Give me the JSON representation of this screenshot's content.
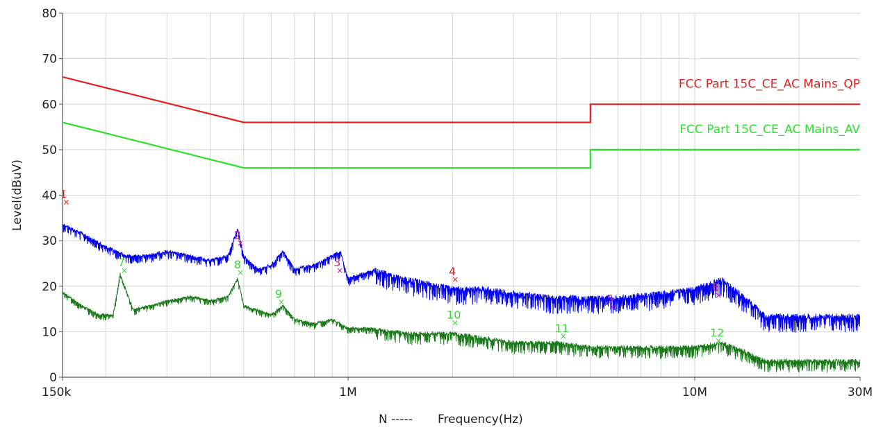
{
  "chart_data": {
    "type": "line",
    "xlabel": "Frequency(Hz)",
    "xlabel_prefix": "N  -----",
    "ylabel": "Level(dBuV)",
    "x_scale": "log",
    "xlim": [
      150000,
      30000000
    ],
    "ylim": [
      0,
      80
    ],
    "grid": true,
    "y_ticks": [
      0,
      10,
      20,
      30,
      40,
      50,
      60,
      70,
      80
    ],
    "x_tick_labels": [
      {
        "value": 150000,
        "label": "150k"
      },
      {
        "value": 1000000,
        "label": "1M"
      },
      {
        "value": 10000000,
        "label": "10M"
      },
      {
        "value": 30000000,
        "label": "30M"
      }
    ],
    "limit_lines": [
      {
        "name": "FCC Part 15C_CE_AC Mains_QP",
        "color": "#e02020",
        "points": [
          [
            150000,
            66
          ],
          [
            500000,
            56
          ],
          [
            5000000,
            56
          ],
          [
            5000000,
            60
          ],
          [
            30000000,
            60
          ]
        ]
      },
      {
        "name": "FCC Part 15C_CE_AC Mains_AV",
        "color": "#2ee02e",
        "points": [
          [
            150000,
            56
          ],
          [
            500000,
            46
          ],
          [
            5000000,
            46
          ],
          [
            5000000,
            50
          ],
          [
            30000000,
            50
          ]
        ]
      }
    ],
    "series": [
      {
        "color": "#0000ee",
        "envelope": [
          [
            150000,
            34
          ],
          [
            170000,
            32
          ],
          [
            200000,
            29
          ],
          [
            230000,
            27
          ],
          [
            260000,
            27
          ],
          [
            300000,
            28
          ],
          [
            350000,
            27
          ],
          [
            400000,
            26
          ],
          [
            450000,
            27
          ],
          [
            480000,
            33
          ],
          [
            500000,
            27
          ],
          [
            550000,
            24
          ],
          [
            600000,
            25
          ],
          [
            650000,
            28
          ],
          [
            700000,
            24
          ],
          [
            800000,
            25
          ],
          [
            900000,
            27
          ],
          [
            950000,
            28
          ],
          [
            1000000,
            22
          ],
          [
            1200000,
            24
          ],
          [
            1500000,
            22
          ],
          [
            2000000,
            20
          ],
          [
            2500000,
            20
          ],
          [
            3000000,
            19
          ],
          [
            4000000,
            18
          ],
          [
            5000000,
            18
          ],
          [
            6000000,
            18
          ],
          [
            8000000,
            19
          ],
          [
            10000000,
            20
          ],
          [
            12000000,
            22
          ],
          [
            14000000,
            18
          ],
          [
            16000000,
            14
          ],
          [
            20000000,
            14
          ],
          [
            30000000,
            14
          ]
        ]
      },
      {
        "color": "#1a7a1a",
        "envelope": [
          [
            150000,
            19
          ],
          [
            170000,
            16
          ],
          [
            190000,
            14
          ],
          [
            210000,
            14
          ],
          [
            220000,
            23
          ],
          [
            240000,
            15
          ],
          [
            300000,
            17
          ],
          [
            350000,
            18
          ],
          [
            400000,
            17
          ],
          [
            450000,
            18
          ],
          [
            480000,
            22
          ],
          [
            500000,
            16
          ],
          [
            600000,
            14
          ],
          [
            650000,
            16
          ],
          [
            700000,
            13
          ],
          [
            800000,
            12
          ],
          [
            900000,
            13
          ],
          [
            1000000,
            11
          ],
          [
            1200000,
            11
          ],
          [
            1500000,
            10
          ],
          [
            2000000,
            10
          ],
          [
            2500000,
            9
          ],
          [
            3000000,
            8
          ],
          [
            4000000,
            8
          ],
          [
            5000000,
            7
          ],
          [
            6000000,
            7
          ],
          [
            8000000,
            7
          ],
          [
            10000000,
            7
          ],
          [
            12000000,
            8
          ],
          [
            14000000,
            6
          ],
          [
            16000000,
            4
          ],
          [
            20000000,
            4
          ],
          [
            30000000,
            4
          ]
        ]
      }
    ],
    "markers": [
      {
        "label": "1",
        "x": 151000,
        "y": 38.5,
        "color": "#e02020"
      },
      {
        "label": "2",
        "x": 480000,
        "y": 29.5,
        "color": "#d41c8c"
      },
      {
        "label": "3",
        "x": 930000,
        "y": 23.5,
        "color": "#d41c8c"
      },
      {
        "label": "4",
        "x": 2000000,
        "y": 21.5,
        "color": "#e02020"
      },
      {
        "label": "5",
        "x": 5700000,
        "y": 15.5,
        "color": "#d41c8c"
      },
      {
        "label": "6",
        "x": 11500000,
        "y": 18.0,
        "color": "#d41c8c"
      },
      {
        "label": "7",
        "x": 222000,
        "y": 23.5,
        "color": "#3ad33a"
      },
      {
        "label": "8",
        "x": 480000,
        "y": 23.0,
        "color": "#3ad33a"
      },
      {
        "label": "9",
        "x": 630000,
        "y": 16.5,
        "color": "#3ad33a"
      },
      {
        "label": "10",
        "x": 2000000,
        "y": 12.0,
        "color": "#3ad33a"
      },
      {
        "label": "11",
        "x": 4100000,
        "y": 9.0,
        "color": "#3ad33a"
      },
      {
        "label": "12",
        "x": 11500000,
        "y": 8.0,
        "color": "#3ad33a"
      }
    ]
  }
}
